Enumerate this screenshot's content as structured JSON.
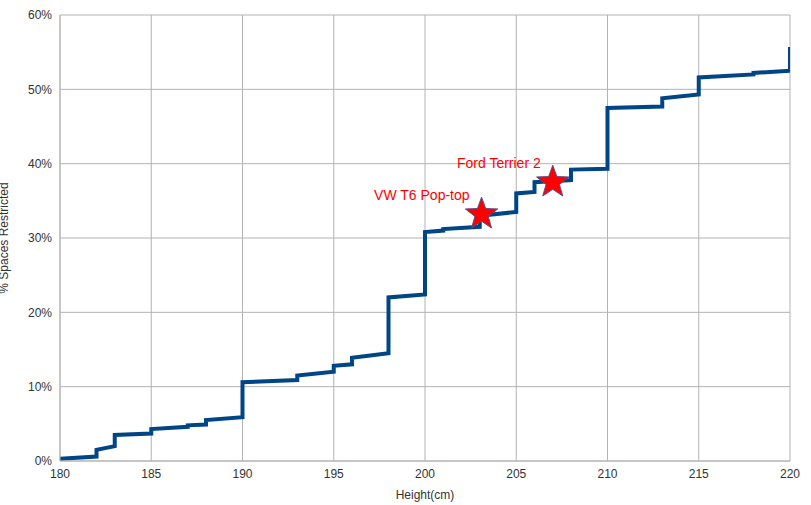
{
  "chart_data": {
    "type": "line",
    "x_label": "Height(cm)",
    "y_label": "% Spaces Restricted",
    "grid": true,
    "xlim": [
      180,
      220
    ],
    "xticks": [
      180,
      185,
      190,
      195,
      200,
      205,
      210,
      215,
      220
    ],
    "ylim": [
      0,
      60
    ],
    "yticks": [
      {
        "value": 0,
        "label": "0%"
      },
      {
        "value": 10,
        "label": "10%"
      },
      {
        "value": 20,
        "label": "20%"
      },
      {
        "value": 30,
        "label": "30%"
      },
      {
        "value": 40,
        "label": "40%"
      },
      {
        "value": 50,
        "label": "50%"
      },
      {
        "value": 60,
        "label": "60%"
      }
    ],
    "series": [
      {
        "color": "#004586",
        "x": [
          180,
          182,
          182,
          183,
          183,
          185,
          185,
          187,
          187,
          188,
          188,
          190,
          190,
          193,
          193,
          195,
          195,
          196,
          196,
          198,
          198,
          200,
          200,
          201,
          201,
          203,
          203,
          205,
          205,
          206,
          206,
          208,
          208,
          210,
          210,
          213,
          213,
          215,
          215,
          218,
          218,
          220,
          220
        ],
        "values": [
          0.3,
          0.6,
          1.5,
          2.0,
          3.5,
          3.7,
          4.3,
          4.6,
          4.8,
          4.9,
          5.5,
          5.9,
          10.6,
          10.9,
          11.5,
          12.0,
          12.8,
          13.0,
          13.9,
          14.5,
          22.0,
          22.4,
          30.8,
          31.0,
          31.2,
          31.5,
          33.0,
          33.5,
          36.0,
          36.2,
          37.5,
          37.8,
          39.2,
          39.3,
          47.5,
          47.7,
          48.8,
          49.3,
          51.6,
          52.0,
          52.2,
          52.5,
          55.7
        ]
      }
    ],
    "annotations": [
      {
        "text": "VW T6 Pop-top",
        "x": 203.1,
        "y": 33.2,
        "marker": "star",
        "color": "#ff0000"
      },
      {
        "text": "Ford Terrier 2",
        "x": 207,
        "y": 37.5,
        "marker": "star",
        "color": "#ff0000"
      }
    ]
  }
}
